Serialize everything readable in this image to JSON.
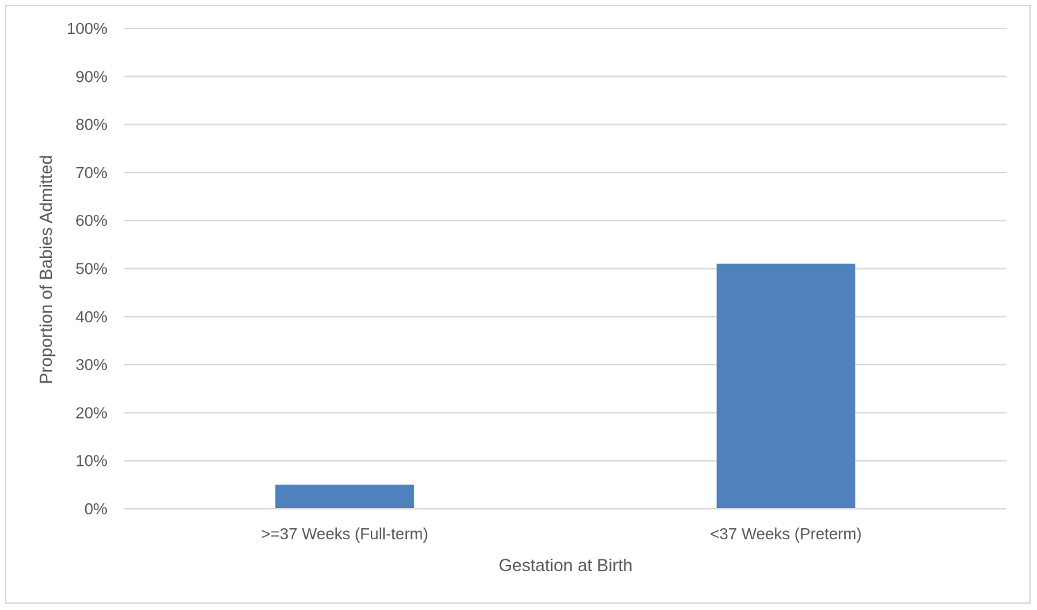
{
  "chart_data": {
    "type": "bar",
    "title": "",
    "xlabel": "Gestation at Birth",
    "ylabel": "Proportion of Babies Admitted",
    "categories": [
      ">=37 Weeks (Full-term)",
      "<37 Weeks (Preterm)"
    ],
    "series": [
      {
        "values": [
          5,
          51
        ],
        "color": "#4f81bd"
      }
    ],
    "ylim": [
      0,
      100
    ],
    "yticks": [
      0,
      10,
      20,
      30,
      40,
      50,
      60,
      70,
      80,
      90,
      100
    ],
    "ytick_labels": [
      "0%",
      "10%",
      "20%",
      "30%",
      "40%",
      "50%",
      "60%",
      "70%",
      "80%",
      "90%",
      "100%"
    ],
    "grid": true,
    "legend": "none",
    "gridline_color": "#d9d9d9"
  }
}
